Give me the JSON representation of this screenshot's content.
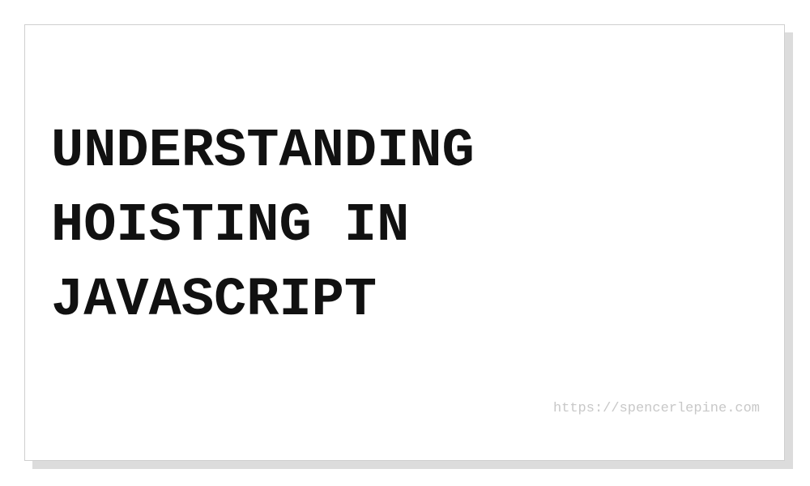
{
  "card": {
    "title_lines": [
      "UNDERSTANDING",
      "HOISTING IN",
      "JAVASCRIPT"
    ],
    "url": "https://spencerlepine.com"
  },
  "colors": {
    "background": "#ffffff",
    "title_text": "#111111",
    "url_text": "#c8c8c8",
    "shadow": "#dcdcdc",
    "border": "#cfcfcf"
  }
}
